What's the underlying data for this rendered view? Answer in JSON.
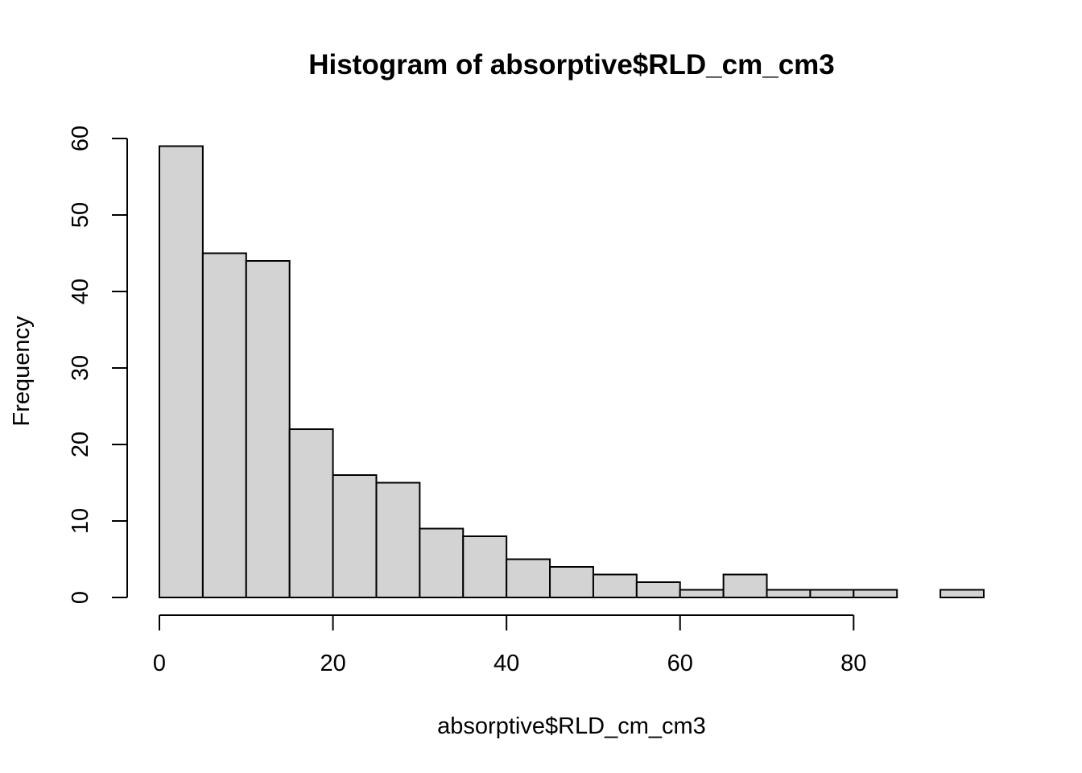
{
  "chart_data": {
    "type": "bar",
    "title": "Histogram of absorptive$RLD_cm_cm3",
    "xlabel": "absorptive$RLD_cm_cm3",
    "ylabel": "Frequency",
    "bin_width": 5,
    "bins": [
      {
        "start": 0,
        "end": 5,
        "count": 59
      },
      {
        "start": 5,
        "end": 10,
        "count": 45
      },
      {
        "start": 10,
        "end": 15,
        "count": 44
      },
      {
        "start": 15,
        "end": 20,
        "count": 22
      },
      {
        "start": 20,
        "end": 25,
        "count": 16
      },
      {
        "start": 25,
        "end": 30,
        "count": 15
      },
      {
        "start": 30,
        "end": 35,
        "count": 9
      },
      {
        "start": 35,
        "end": 40,
        "count": 8
      },
      {
        "start": 40,
        "end": 45,
        "count": 5
      },
      {
        "start": 45,
        "end": 50,
        "count": 4
      },
      {
        "start": 50,
        "end": 55,
        "count": 3
      },
      {
        "start": 55,
        "end": 60,
        "count": 2
      },
      {
        "start": 60,
        "end": 65,
        "count": 1
      },
      {
        "start": 65,
        "end": 70,
        "count": 3
      },
      {
        "start": 70,
        "end": 75,
        "count": 1
      },
      {
        "start": 75,
        "end": 80,
        "count": 1
      },
      {
        "start": 80,
        "end": 85,
        "count": 1
      },
      {
        "start": 85,
        "end": 90,
        "count": 0
      },
      {
        "start": 90,
        "end": 95,
        "count": 1
      }
    ],
    "xlim": [
      0,
      95
    ],
    "ylim": [
      0,
      60
    ],
    "x_ticks": [
      0,
      20,
      40,
      60,
      80
    ],
    "y_ticks": [
      0,
      10,
      20,
      30,
      40,
      50,
      60
    ],
    "grid": false,
    "legend": "none",
    "bar_fill": "#d3d3d3",
    "bar_stroke": "#000000"
  }
}
